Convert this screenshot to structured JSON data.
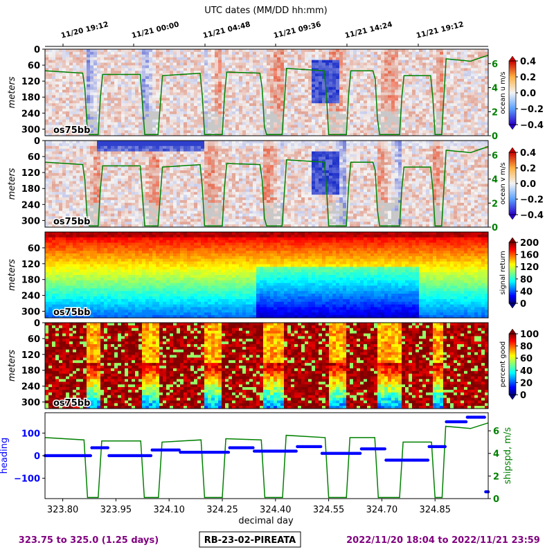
{
  "header": {
    "top_axis_title": "UTC dates (MM/DD hh:mm)",
    "top_tick_labels": [
      "11/20 19:12",
      "11/21 00:00",
      "11/21 04:48",
      "11/21 09:36",
      "11/21 14:24",
      "11/21 19:12"
    ]
  },
  "footer": {
    "left": "323.75 to 325.0 (1.25 days)",
    "center": "RB-23-02-PIREATA",
    "right": "2022/11/20 18:04 to 2022/11/21 23:59"
  },
  "colors": {
    "green": "#008000",
    "blue": "#0000ff",
    "purple": "#800080",
    "nodata": "#c8c8c8"
  },
  "chart_data": [
    {
      "type": "heatmap",
      "name": "ocean u",
      "instrument": "os75bb",
      "ylabel": "meters",
      "yticks": [
        0,
        60,
        120,
        180,
        240,
        300
      ],
      "ylim": [
        325,
        0
      ],
      "colorbar": {
        "label": "ocean u m/s",
        "ticks": [
          "0.4",
          "0.2",
          "0.0",
          "−0.2",
          "−0.4"
        ],
        "range": [
          -0.4,
          0.4
        ],
        "cmap": "seismic-like"
      },
      "right_ticks": [
        "6",
        "4",
        "2",
        "0"
      ],
      "overlay": "ship speed (m/s)"
    },
    {
      "type": "heatmap",
      "name": "ocean v",
      "instrument": "os75bb",
      "ylabel": "meters",
      "yticks": [
        0,
        60,
        120,
        180,
        240,
        300
      ],
      "ylim": [
        325,
        0
      ],
      "colorbar": {
        "label": "ocean v m/s",
        "ticks": [
          "0.4",
          "0.2",
          "0.0",
          "−0.2",
          "−0.4"
        ],
        "range": [
          -0.4,
          0.4
        ],
        "cmap": "seismic-like"
      },
      "right_ticks": [
        "6",
        "4",
        "2",
        "0"
      ],
      "overlay": "ship speed (m/s)"
    },
    {
      "type": "heatmap",
      "name": "signal return",
      "instrument": "os75bb",
      "ylabel": "meters",
      "yticks": [
        60,
        120,
        180,
        240,
        300
      ],
      "ylim": [
        325,
        0
      ],
      "colorbar": {
        "label": "signal return",
        "ticks": [
          "200",
          "160",
          "120",
          "80",
          "40",
          "0"
        ],
        "range": [
          0,
          200
        ],
        "cmap": "jet"
      }
    },
    {
      "type": "heatmap",
      "name": "percent good",
      "instrument": "os75bb",
      "ylabel": "meters",
      "yticks": [
        0,
        60,
        120,
        180,
        240,
        300
      ],
      "ylim": [
        325,
        0
      ],
      "colorbar": {
        "label": "percent good",
        "ticks": [
          "100",
          "80",
          "60",
          "40",
          "20",
          "0"
        ],
        "range": [
          0,
          100
        ],
        "cmap": "jet"
      }
    },
    {
      "type": "line",
      "name": "heading and ship speed",
      "xlabel": "decimal day",
      "xticks": [
        "323.80",
        "323.95",
        "324.10",
        "324.25",
        "324.40",
        "324.55",
        "324.70",
        "324.85"
      ],
      "xlim": [
        323.75,
        325.0
      ],
      "ylabel_left": "heading",
      "yticks_left": [
        "100",
        "0",
        "−100"
      ],
      "ylim_left": [
        -190,
        190
      ],
      "ylabel_right": "shipspd, m/s",
      "yticks_right": [
        "6",
        "4",
        "2",
        "0"
      ],
      "ylim_right": [
        0,
        7.6
      ],
      "series": [
        {
          "name": "heading",
          "points": [
            [
              323.75,
              0
            ],
            [
              323.86,
              0
            ],
            [
              323.88,
              35
            ],
            [
              323.92,
              35
            ],
            [
              323.93,
              0
            ],
            [
              324.03,
              0
            ],
            [
              324.05,
              25
            ],
            [
              324.11,
              25
            ],
            [
              324.13,
              15
            ],
            [
              324.25,
              15
            ],
            [
              324.27,
              35
            ],
            [
              324.32,
              35
            ],
            [
              324.34,
              20
            ],
            [
              324.44,
              20
            ],
            [
              324.46,
              40
            ],
            [
              324.52,
              40
            ],
            [
              324.53,
              10
            ],
            [
              324.62,
              10
            ],
            [
              324.64,
              30
            ],
            [
              324.7,
              30
            ],
            [
              324.71,
              -20
            ],
            [
              324.8,
              -20
            ],
            [
              324.83,
              40
            ],
            [
              324.86,
              40
            ],
            [
              324.88,
              150
            ],
            [
              324.93,
              150
            ],
            [
              324.94,
              170
            ],
            [
              324.98,
              170
            ],
            [
              324.99,
              -160
            ],
            [
              325.0,
              -160
            ]
          ]
        },
        {
          "name": "ship speed",
          "points": [
            [
              323.75,
              5.4
            ],
            [
              323.86,
              5.2
            ],
            [
              323.87,
              0.1
            ],
            [
              323.9,
              0.1
            ],
            [
              323.91,
              5.1
            ],
            [
              324.02,
              5.1
            ],
            [
              324.03,
              0.1
            ],
            [
              324.07,
              0.1
            ],
            [
              324.08,
              5.0
            ],
            [
              324.19,
              5.2
            ],
            [
              324.2,
              0.1
            ],
            [
              324.25,
              0.1
            ],
            [
              324.26,
              5.3
            ],
            [
              324.36,
              5.2
            ],
            [
              324.37,
              0.1
            ],
            [
              324.42,
              0.1
            ],
            [
              324.43,
              5.6
            ],
            [
              324.54,
              5.4
            ],
            [
              324.55,
              0.1
            ],
            [
              324.6,
              0.1
            ],
            [
              324.61,
              5.4
            ],
            [
              324.68,
              5.4
            ],
            [
              324.69,
              0.1
            ],
            [
              324.75,
              0.1
            ],
            [
              324.76,
              5.0
            ],
            [
              324.84,
              5.0
            ],
            [
              324.85,
              0.1
            ],
            [
              324.87,
              0.1
            ],
            [
              324.88,
              6.4
            ],
            [
              324.95,
              6.2
            ],
            [
              325.0,
              6.7
            ]
          ]
        }
      ]
    }
  ]
}
